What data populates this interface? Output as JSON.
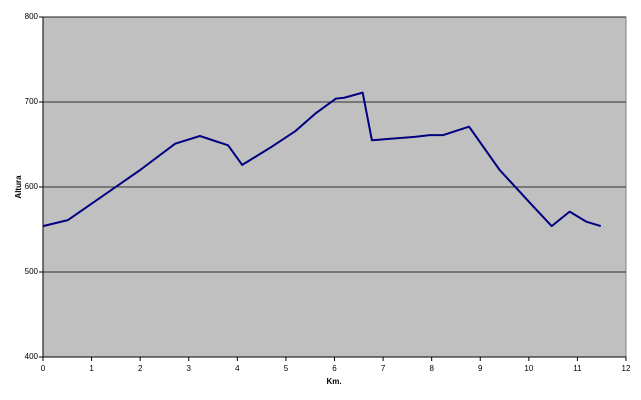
{
  "chart_data": {
    "type": "line",
    "x_label": "Km.",
    "y_label": "Altura",
    "x": [
      0,
      0.51,
      2.0,
      2.72,
      3.23,
      3.81,
      4.1,
      4.67,
      5.2,
      5.62,
      6.03,
      6.2,
      6.58,
      6.77,
      7.65,
      7.96,
      8.23,
      8.77,
      9.4,
      10.06,
      10.47,
      10.84,
      11.19,
      11.48
    ],
    "series": [
      {
        "color": "#000080",
        "values": [
          554,
          561,
          620,
          651,
          660,
          649,
          626,
          646,
          666,
          687,
          704,
          705,
          711,
          655,
          659,
          661,
          661,
          671,
          620,
          579,
          554,
          571,
          559,
          554
        ]
      }
    ],
    "xlim": [
      0,
      12
    ],
    "xticks": [
      0,
      1,
      2,
      3,
      4,
      5,
      6,
      7,
      8,
      9,
      10,
      11,
      12
    ],
    "ylim": [
      400,
      800
    ],
    "yticks": [
      400,
      500,
      600,
      700,
      800
    ],
    "grid": true,
    "background": "#c0c0c0"
  }
}
